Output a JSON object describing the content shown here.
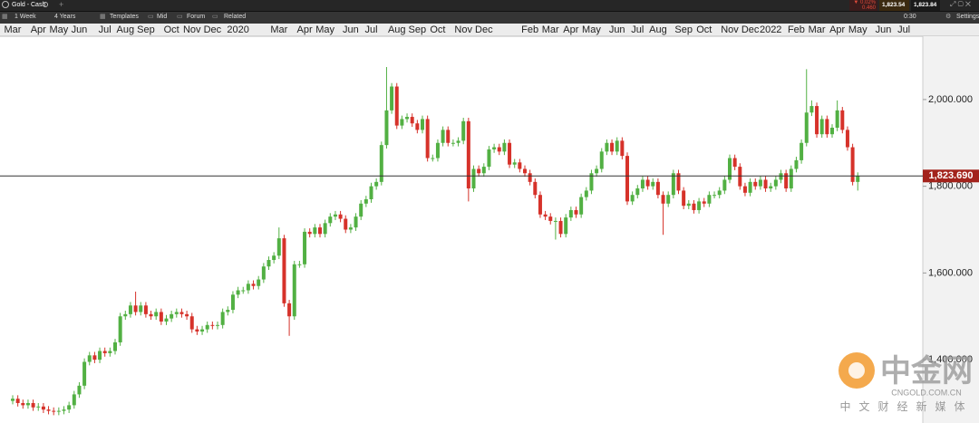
{
  "header": {
    "instrument": "Gold - Cash",
    "interval": "1 Week",
    "range": "4 Years",
    "templates": "Templates",
    "price_type": "Mid",
    "forum": "Forum",
    "related": "Related",
    "settings": "Settings",
    "change": "▼ 0.02%",
    "change_points": "0.460",
    "bid": "1,823.54",
    "ask": "1,823.84",
    "timer": "0:30"
  },
  "watermark": {
    "brand": "中金网",
    "site": "CNGOLD.COM.CN",
    "slogan": "中文财经新媒体"
  },
  "chart_data": {
    "type": "candlestick",
    "categories": [
      "Mar",
      null,
      null,
      null,
      null,
      "Apr",
      null,
      null,
      null,
      "May",
      null,
      null,
      null,
      "Jun",
      null,
      null,
      null,
      null,
      "Jul",
      null,
      null,
      null,
      "Aug",
      null,
      null,
      null,
      "Sep",
      null,
      null,
      null,
      null,
      "Oct",
      null,
      null,
      null,
      "Nov",
      null,
      null,
      null,
      "Dec",
      null,
      null,
      null,
      null,
      "2020",
      null,
      null,
      null,
      null,
      null,
      null,
      null,
      "Mar",
      null,
      null,
      null,
      null,
      "Apr",
      null,
      null,
      null,
      "May",
      null,
      null,
      null,
      null,
      "Jun",
      null,
      null,
      null,
      "Jul",
      null,
      null,
      null,
      null,
      "Aug",
      null,
      null,
      null,
      "Sep",
      null,
      null,
      null,
      "Oct",
      null,
      null,
      null,
      null,
      "Nov",
      null,
      null,
      null,
      "Dec",
      null,
      null,
      null,
      null,
      null,
      null,
      null,
      null,
      "Feb",
      null,
      null,
      null,
      "Mar",
      null,
      null,
      null,
      "Apr",
      null,
      null,
      null,
      "May",
      null,
      null,
      null,
      null,
      "Jun",
      null,
      null,
      null,
      "Jul",
      null,
      null,
      null,
      "Aug",
      null,
      null,
      null,
      null,
      "Sep",
      null,
      null,
      null,
      "Oct",
      null,
      null,
      null,
      null,
      "Nov",
      null,
      null,
      null,
      "Dec",
      null,
      null,
      null,
      "2022",
      null,
      null,
      null,
      null,
      "Feb",
      null,
      null,
      null,
      "Mar",
      null,
      null,
      null,
      "Apr",
      null,
      null,
      null,
      "May",
      null,
      null,
      null,
      null,
      "Jun",
      null,
      null,
      null,
      "Jul"
    ],
    "open": [
      1305,
      1310,
      1300,
      1295,
      1300,
      1290,
      1292,
      1285,
      1282,
      1280,
      1282,
      1285,
      1295,
      1320,
      1340,
      1395,
      1410,
      1400,
      1420,
      1415,
      1420,
      1440,
      1500,
      1505,
      1525,
      1510,
      1525,
      1505,
      1500,
      1510,
      1488,
      1495,
      1505,
      1510,
      1505,
      1500,
      1470,
      1465,
      1470,
      1480,
      1478,
      1480,
      1510,
      1515,
      1550,
      1560,
      1560,
      1575,
      1570,
      1585,
      1615,
      1630,
      1640,
      1680,
      1530,
      1500,
      1620,
      1620,
      1695,
      1690,
      1705,
      1690,
      1715,
      1730,
      1735,
      1725,
      1700,
      1705,
      1730,
      1760,
      1770,
      1800,
      1810,
      1895,
      1975,
      2030,
      1940,
      1955,
      1960,
      1945,
      1930,
      1955,
      1865,
      1865,
      1900,
      1930,
      1900,
      1900,
      1905,
      1950,
      1795,
      1840,
      1830,
      1845,
      1885,
      1890,
      1880,
      1900,
      1850,
      1855,
      1840,
      1830,
      1810,
      1780,
      1735,
      1730,
      1720,
      1720,
      1690,
      1728,
      1745,
      1735,
      1775,
      1790,
      1830,
      1840,
      1880,
      1900,
      1880,
      1905,
      1870,
      1765,
      1780,
      1795,
      1815,
      1800,
      1810,
      1780,
      1760,
      1780,
      1830,
      1790,
      1755,
      1760,
      1745,
      1765,
      1760,
      1780,
      1780,
      1790,
      1815,
      1865,
      1845,
      1800,
      1785,
      1810,
      1800,
      1815,
      1795,
      1800,
      1815,
      1830,
      1795,
      1840,
      1860,
      1900,
      1970,
      1985,
      1920,
      1955,
      1920,
      1935,
      1975,
      1930,
      1890,
      1810,
      null,
      null,
      null,
      null,
      null,
      null,
      null,
      null,
      null
    ],
    "high": [
      1318,
      1318,
      1308,
      1308,
      1308,
      1300,
      1300,
      1293,
      1290,
      1290,
      1293,
      1303,
      1328,
      1348,
      1403,
      1418,
      1418,
      1428,
      1428,
      1428,
      1448,
      1508,
      1513,
      1533,
      1557,
      1533,
      1533,
      1513,
      1518,
      1518,
      1503,
      1513,
      1518,
      1518,
      1513,
      1508,
      1478,
      1478,
      1488,
      1488,
      1488,
      1518,
      1523,
      1558,
      1568,
      1568,
      1583,
      1583,
      1593,
      1623,
      1638,
      1648,
      1705,
      1688,
      1538,
      1628,
      1628,
      1703,
      1703,
      1713,
      1713,
      1723,
      1738,
      1743,
      1743,
      1733,
      1713,
      1738,
      1768,
      1778,
      1808,
      1818,
      1903,
      2075,
      2038,
      2038,
      1963,
      1968,
      1968,
      1953,
      1963,
      1963,
      1873,
      1908,
      1938,
      1938,
      1908,
      1913,
      1958,
      1958,
      1848,
      1848,
      1853,
      1893,
      1898,
      1898,
      1908,
      1908,
      1863,
      1863,
      1848,
      1838,
      1818,
      1788,
      1743,
      1738,
      1728,
      1728,
      1736,
      1753,
      1753,
      1783,
      1798,
      1838,
      1848,
      1888,
      1908,
      1908,
      1913,
      1913,
      1878,
      1788,
      1803,
      1823,
      1823,
      1818,
      1818,
      1788,
      1788,
      1838,
      1838,
      1798,
      1768,
      1768,
      1773,
      1773,
      1788,
      1788,
      1798,
      1823,
      1873,
      1873,
      1853,
      1808,
      1818,
      1818,
      1823,
      1823,
      1808,
      1823,
      1838,
      1838,
      1848,
      1868,
      1908,
      2070,
      1998,
      1993,
      1963,
      1963,
      1943,
      1998,
      1983,
      1938,
      1898,
      1832,
      null,
      null,
      null,
      null,
      null,
      null,
      null,
      null,
      null
    ],
    "low": [
      1297,
      1292,
      1287,
      1287,
      1282,
      1282,
      1277,
      1274,
      1272,
      1272,
      1274,
      1277,
      1287,
      1312,
      1332,
      1387,
      1392,
      1392,
      1407,
      1407,
      1412,
      1432,
      1492,
      1497,
      1502,
      1502,
      1497,
      1492,
      1492,
      1480,
      1480,
      1487,
      1497,
      1497,
      1492,
      1462,
      1457,
      1457,
      1462,
      1470,
      1470,
      1472,
      1502,
      1507,
      1542,
      1552,
      1552,
      1562,
      1562,
      1577,
      1607,
      1622,
      1632,
      1522,
      1455,
      1492,
      1612,
      1612,
      1682,
      1682,
      1682,
      1682,
      1707,
      1722,
      1717,
      1692,
      1692,
      1697,
      1722,
      1752,
      1762,
      1792,
      1802,
      1887,
      1967,
      1932,
      1932,
      1947,
      1937,
      1922,
      1922,
      1857,
      1857,
      1857,
      1892,
      1892,
      1892,
      1892,
      1897,
      1765,
      1787,
      1822,
      1822,
      1837,
      1877,
      1872,
      1872,
      1842,
      1842,
      1832,
      1822,
      1802,
      1772,
      1727,
      1722,
      1712,
      1677,
      1682,
      1682,
      1720,
      1727,
      1727,
      1767,
      1782,
      1822,
      1832,
      1872,
      1872,
      1872,
      1862,
      1757,
      1757,
      1772,
      1787,
      1792,
      1792,
      1772,
      1688,
      1752,
      1772,
      1782,
      1747,
      1747,
      1737,
      1737,
      1752,
      1752,
      1772,
      1772,
      1782,
      1807,
      1837,
      1792,
      1777,
      1777,
      1792,
      1792,
      1787,
      1787,
      1792,
      1807,
      1787,
      1787,
      1832,
      1852,
      1892,
      1962,
      1912,
      1912,
      1912,
      1912,
      1927,
      1922,
      1882,
      1802,
      1790,
      null,
      null,
      null,
      null,
      null,
      null,
      null,
      null,
      null
    ],
    "close": [
      1310,
      1300,
      1295,
      1300,
      1290,
      1292,
      1285,
      1282,
      1280,
      1282,
      1285,
      1295,
      1320,
      1340,
      1395,
      1410,
      1400,
      1420,
      1415,
      1420,
      1440,
      1500,
      1505,
      1525,
      1510,
      1525,
      1505,
      1500,
      1510,
      1488,
      1495,
      1505,
      1510,
      1505,
      1500,
      1470,
      1465,
      1470,
      1480,
      1478,
      1480,
      1510,
      1515,
      1550,
      1560,
      1560,
      1575,
      1570,
      1585,
      1615,
      1630,
      1640,
      1680,
      1530,
      1500,
      1620,
      1620,
      1695,
      1690,
      1705,
      1690,
      1715,
      1730,
      1735,
      1725,
      1700,
      1705,
      1730,
      1760,
      1770,
      1800,
      1810,
      1895,
      1975,
      2030,
      1940,
      1955,
      1960,
      1945,
      1930,
      1955,
      1865,
      1865,
      1900,
      1930,
      1900,
      1900,
      1905,
      1950,
      1795,
      1840,
      1830,
      1845,
      1885,
      1890,
      1880,
      1900,
      1850,
      1855,
      1840,
      1830,
      1810,
      1780,
      1735,
      1730,
      1720,
      1720,
      1690,
      1728,
      1745,
      1735,
      1775,
      1790,
      1830,
      1840,
      1880,
      1900,
      1880,
      1905,
      1870,
      1765,
      1780,
      1795,
      1815,
      1800,
      1810,
      1780,
      1760,
      1780,
      1830,
      1790,
      1755,
      1760,
      1745,
      1765,
      1760,
      1780,
      1780,
      1790,
      1815,
      1865,
      1845,
      1800,
      1785,
      1810,
      1800,
      1815,
      1795,
      1800,
      1815,
      1830,
      1795,
      1840,
      1860,
      1900,
      1970,
      1985,
      1920,
      1955,
      1920,
      1935,
      1975,
      1930,
      1890,
      1810,
      1824,
      null,
      null,
      null,
      null,
      null,
      null,
      null,
      null,
      null
    ],
    "up_color": "#52b043",
    "down_color": "#d6322a",
    "ylim": [
      1254,
      2146
    ],
    "yticks": [
      {
        "value": 1400,
        "label": "1,400.000"
      },
      {
        "value": 1600,
        "label": "1,600.000"
      },
      {
        "value": 1800,
        "label": "1,800.000"
      },
      {
        "value": 2000,
        "label": "2,000.000"
      }
    ],
    "last_price": {
      "value": 1823.69,
      "label": "1,823.690"
    }
  }
}
